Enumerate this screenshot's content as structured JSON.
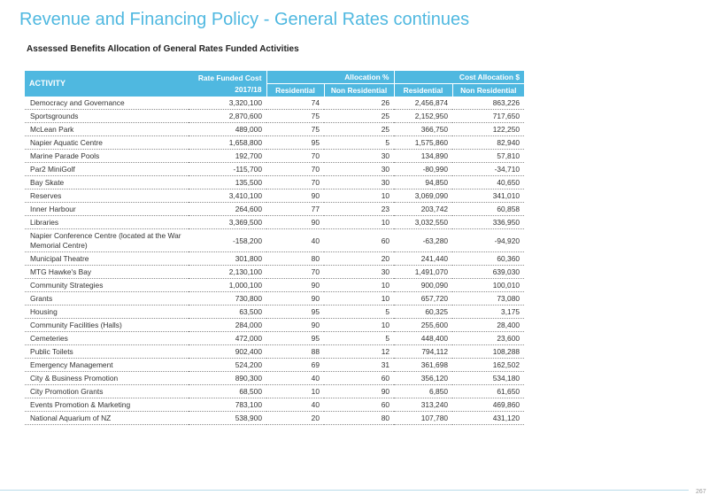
{
  "header": {
    "title": "Revenue and Financing Policy - General Rates continues",
    "subtitle": "Assessed Benefits Allocation of General Rates Funded Activities"
  },
  "table": {
    "headers": {
      "activity": "ACTIVITY",
      "rate_funded_cost_line1": "Rate Funded Cost",
      "rate_funded_cost_line2": "2017/18",
      "allocation_pct": "Allocation %",
      "cost_allocation": "Cost Allocation $",
      "residential": "Residential",
      "non_residential": "Non Residential"
    },
    "rows": [
      {
        "activity": "Democracy and Governance",
        "cost": "3,320,100",
        "res_pct": "74",
        "nonres_pct": "26",
        "res_cost": "2,456,874",
        "nonres_cost": "863,226"
      },
      {
        "activity": "Sportsgrounds",
        "cost": "2,870,600",
        "res_pct": "75",
        "nonres_pct": "25",
        "res_cost": "2,152,950",
        "nonres_cost": "717,650"
      },
      {
        "activity": "McLean Park",
        "cost": "489,000",
        "res_pct": "75",
        "nonres_pct": "25",
        "res_cost": "366,750",
        "nonres_cost": "122,250"
      },
      {
        "activity": "Napier Aquatic Centre",
        "cost": "1,658,800",
        "res_pct": "95",
        "nonres_pct": "5",
        "res_cost": "1,575,860",
        "nonres_cost": "82,940"
      },
      {
        "activity": "Marine Parade Pools",
        "cost": "192,700",
        "res_pct": "70",
        "nonres_pct": "30",
        "res_cost": "134,890",
        "nonres_cost": "57,810"
      },
      {
        "activity": "Par2 MiniGolf",
        "cost": "-115,700",
        "res_pct": "70",
        "nonres_pct": "30",
        "res_cost": "-80,990",
        "nonres_cost": "-34,710"
      },
      {
        "activity": "Bay Skate",
        "cost": "135,500",
        "res_pct": "70",
        "nonres_pct": "30",
        "res_cost": "94,850",
        "nonres_cost": "40,650"
      },
      {
        "activity": "Reserves",
        "cost": "3,410,100",
        "res_pct": "90",
        "nonres_pct": "10",
        "res_cost": "3,069,090",
        "nonres_cost": "341,010"
      },
      {
        "activity": "Inner Harbour",
        "cost": "264,600",
        "res_pct": "77",
        "nonres_pct": "23",
        "res_cost": "203,742",
        "nonres_cost": "60,858"
      },
      {
        "activity": "Libraries",
        "cost": "3,369,500",
        "res_pct": "90",
        "nonres_pct": "10",
        "res_cost": "3,032,550",
        "nonres_cost": "336,950"
      },
      {
        "activity": "Napier Conference Centre (located at the War Memorial Centre)",
        "cost": "-158,200",
        "res_pct": "40",
        "nonres_pct": "60",
        "res_cost": "-63,280",
        "nonres_cost": "-94,920"
      },
      {
        "activity": "Municipal Theatre",
        "cost": "301,800",
        "res_pct": "80",
        "nonres_pct": "20",
        "res_cost": "241,440",
        "nonres_cost": "60,360"
      },
      {
        "activity": "MTG Hawke's Bay",
        "cost": "2,130,100",
        "res_pct": "70",
        "nonres_pct": "30",
        "res_cost": "1,491,070",
        "nonres_cost": "639,030"
      },
      {
        "activity": "Community Strategies",
        "cost": "1,000,100",
        "res_pct": "90",
        "nonres_pct": "10",
        "res_cost": "900,090",
        "nonres_cost": "100,010"
      },
      {
        "activity": "Grants",
        "cost": "730,800",
        "res_pct": "90",
        "nonres_pct": "10",
        "res_cost": "657,720",
        "nonres_cost": "73,080"
      },
      {
        "activity": "Housing",
        "cost": "63,500",
        "res_pct": "95",
        "nonres_pct": "5",
        "res_cost": "60,325",
        "nonres_cost": "3,175"
      },
      {
        "activity": "Community Facilities (Halls)",
        "cost": "284,000",
        "res_pct": "90",
        "nonres_pct": "10",
        "res_cost": "255,600",
        "nonres_cost": "28,400"
      },
      {
        "activity": "Cemeteries",
        "cost": "472,000",
        "res_pct": "95",
        "nonres_pct": "5",
        "res_cost": "448,400",
        "nonres_cost": "23,600"
      },
      {
        "activity": "Public Toilets",
        "cost": "902,400",
        "res_pct": "88",
        "nonres_pct": "12",
        "res_cost": "794,112",
        "nonres_cost": "108,288"
      },
      {
        "activity": "Emergency Management",
        "cost": "524,200",
        "res_pct": "69",
        "nonres_pct": "31",
        "res_cost": "361,698",
        "nonres_cost": "162,502"
      },
      {
        "activity": "City & Business Promotion",
        "cost": "890,300",
        "res_pct": "40",
        "nonres_pct": "60",
        "res_cost": "356,120",
        "nonres_cost": "534,180"
      },
      {
        "activity": "City Promotion Grants",
        "cost": "68,500",
        "res_pct": "10",
        "nonres_pct": "90",
        "res_cost": "6,850",
        "nonres_cost": "61,650"
      },
      {
        "activity": "Events Promotion & Marketing",
        "cost": "783,100",
        "res_pct": "40",
        "nonres_pct": "60",
        "res_cost": "313,240",
        "nonres_cost": "469,860"
      },
      {
        "activity": "National Aquarium of NZ",
        "cost": "538,900",
        "res_pct": "20",
        "nonres_pct": "80",
        "res_cost": "107,780",
        "nonres_cost": "431,120"
      }
    ]
  },
  "footer": {
    "page_number": "267"
  },
  "colors": {
    "accent": "#4fb8e0",
    "title": "#4fb8e0",
    "header_text": "#ffffff"
  }
}
